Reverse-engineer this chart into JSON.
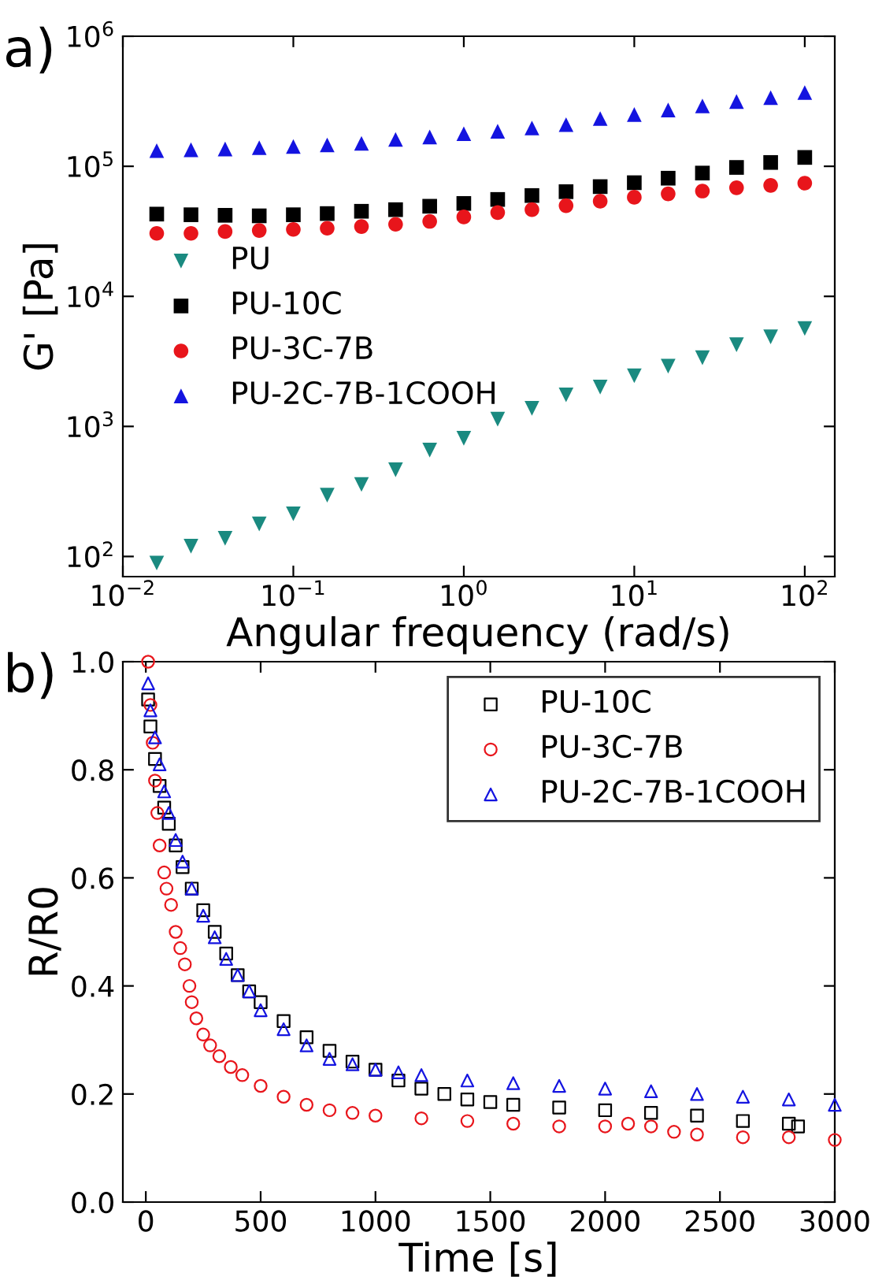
{
  "chart_data": [
    {
      "type": "scatter",
      "xlabel": "Angular frequency (rad/s)",
      "ylabel": "G' [Pa]",
      "annotations": [
        "a)"
      ],
      "log": "xy",
      "legend": "left",
      "grid": false,
      "xlim": [
        0.01,
        150
      ],
      "ylim": [
        70,
        1000000
      ],
      "xticks": [
        {
          "value": 0.01,
          "label": "10$^{−2}$"
        },
        {
          "value": 0.1,
          "label": "10$^{−1}$"
        },
        {
          "value": 1,
          "label": "10$^{0}$"
        },
        {
          "value": 10,
          "label": "10$^{1}$"
        },
        {
          "value": 100,
          "label": "10$^{2}$"
        }
      ],
      "yticks": [
        {
          "value": 100,
          "label": "10$^{2}$"
        },
        {
          "value": 1000,
          "label": "10$^{3}$"
        },
        {
          "value": 10000,
          "label": "10$^{4}$"
        },
        {
          "value": 100000,
          "label": "10$^{5}$"
        },
        {
          "value": 1000000,
          "label": "10$^{6}$"
        }
      ],
      "x": [
        0.0158,
        0.0251,
        0.0398,
        0.0631,
        0.1,
        0.158,
        0.251,
        0.398,
        0.631,
        1,
        1.58,
        2.51,
        3.98,
        6.31,
        10,
        15.8,
        25.1,
        39.8,
        63.1,
        100
      ],
      "series": [
        {
          "name": "PU",
          "color": "#1a8a80",
          "marker": "triangle_down",
          "values": [
            89,
            120,
            138,
            178,
            213,
            296,
            358,
            464,
            658,
            811,
            1137,
            1376,
            1748,
            2008,
            2454,
            2906,
            3375,
            4243,
            4878,
            5664
          ]
        },
        {
          "name": "PU-10C",
          "color": "#000000",
          "marker": "square",
          "values": [
            42900,
            42400,
            42000,
            41600,
            42400,
            43300,
            45100,
            46400,
            49300,
            51800,
            55600,
            59600,
            63800,
            69800,
            74800,
            81000,
            88700,
            98000,
            107000,
            117000
          ]
        },
        {
          "name": "PU-3C-7B",
          "color": "#e8151b",
          "marker": "circle",
          "values": [
            30500,
            30500,
            31500,
            32100,
            32700,
            33400,
            34400,
            35800,
            37700,
            40800,
            44100,
            46400,
            49800,
            53900,
            57800,
            61400,
            64500,
            68400,
            71300,
            74200
          ]
        },
        {
          "name": "PU-2C-7B-1COOH",
          "color": "#1414e0",
          "marker": "triangle",
          "values": [
            132000,
            134000,
            136000,
            139000,
            142000,
            146000,
            150000,
            161000,
            168000,
            178000,
            186000,
            197000,
            209000,
            233000,
            250000,
            271000,
            291000,
            315000,
            337000,
            369000
          ]
        }
      ]
    },
    {
      "type": "scatter",
      "xlabel": "Time [s]",
      "ylabel": "R/R0",
      "annotations": [
        "b)"
      ],
      "legend": "top right",
      "grid": false,
      "xlim": [
        -100,
        3000
      ],
      "ylim": [
        0,
        1
      ],
      "xticks": [
        0,
        500,
        1000,
        1500,
        2000,
        2500,
        3000
      ],
      "yticks": [
        {
          "value": 0,
          "label": "0.0"
        },
        0.2,
        0.4,
        0.6,
        0.8,
        {
          "value": 1,
          "label": "1.0"
        }
      ],
      "series": [
        {
          "name": "PU-10C",
          "color": "#000000",
          "marker": "square",
          "x": [
            10,
            20,
            40,
            60,
            80,
            100,
            130,
            160,
            200,
            250,
            300,
            350,
            400,
            450,
            500,
            600,
            700,
            800,
            900,
            1000,
            1100,
            1200,
            1300,
            1400,
            1500,
            1600,
            1800,
            2000,
            2200,
            2400,
            2600,
            2800,
            2840
          ],
          "values": [
            0.93,
            0.88,
            0.82,
            0.77,
            0.73,
            0.7,
            0.66,
            0.62,
            0.58,
            0.54,
            0.5,
            0.46,
            0.42,
            0.39,
            0.37,
            0.335,
            0.305,
            0.28,
            0.26,
            0.245,
            0.225,
            0.21,
            0.2,
            0.19,
            0.185,
            0.18,
            0.175,
            0.17,
            0.165,
            0.16,
            0.15,
            0.145,
            0.14
          ]
        },
        {
          "name": "PU-3C-7B",
          "color": "#e8151b",
          "marker": "circle",
          "x": [
            10,
            20,
            30,
            40,
            50,
            60,
            80,
            90,
            110,
            130,
            150,
            170,
            190,
            200,
            220,
            250,
            280,
            320,
            370,
            420,
            500,
            600,
            700,
            800,
            900,
            1000,
            1200,
            1400,
            1600,
            1800,
            2000,
            2100,
            2200,
            2300,
            2400,
            2600,
            2800,
            3000
          ],
          "values": [
            1.0,
            0.92,
            0.85,
            0.78,
            0.72,
            0.66,
            0.61,
            0.58,
            0.55,
            0.5,
            0.47,
            0.44,
            0.4,
            0.37,
            0.34,
            0.31,
            0.29,
            0.27,
            0.25,
            0.235,
            0.215,
            0.195,
            0.18,
            0.17,
            0.165,
            0.16,
            0.155,
            0.15,
            0.145,
            0.14,
            0.14,
            0.145,
            0.14,
            0.13,
            0.125,
            0.12,
            0.12,
            0.115
          ]
        },
        {
          "name": "PU-2C-7B-1COOH",
          "color": "#1414e0",
          "marker": "triangle",
          "x": [
            10,
            20,
            40,
            60,
            80,
            100,
            130,
            160,
            200,
            250,
            300,
            350,
            400,
            450,
            500,
            600,
            700,
            800,
            900,
            1000,
            1100,
            1200,
            1400,
            1600,
            1800,
            2000,
            2200,
            2400,
            2600,
            2800,
            3000
          ],
          "values": [
            0.96,
            0.91,
            0.86,
            0.81,
            0.76,
            0.72,
            0.67,
            0.63,
            0.58,
            0.53,
            0.49,
            0.45,
            0.42,
            0.39,
            0.355,
            0.32,
            0.29,
            0.265,
            0.255,
            0.245,
            0.24,
            0.235,
            0.225,
            0.22,
            0.215,
            0.21,
            0.205,
            0.2,
            0.195,
            0.19,
            0.18
          ]
        }
      ]
    }
  ]
}
